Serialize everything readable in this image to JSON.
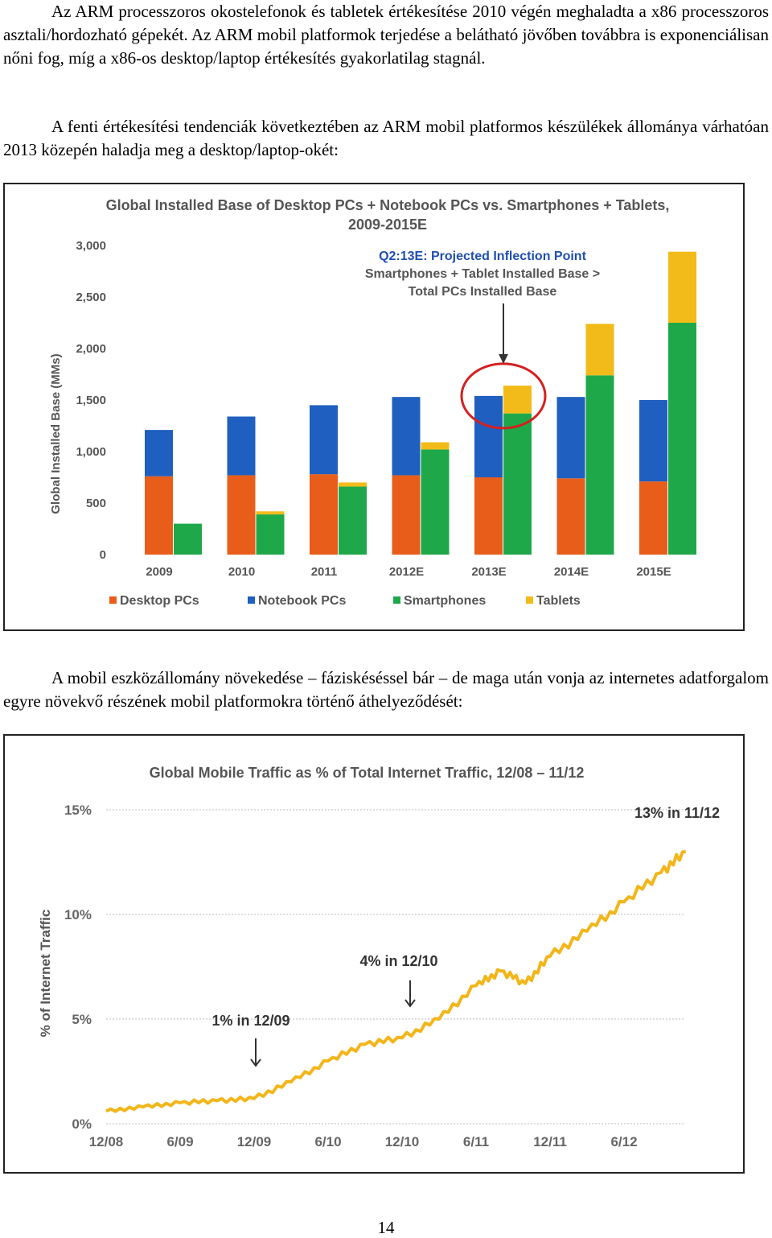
{
  "paragraphs": {
    "p1": "Az ARM processzoros okostelefonok és tabletek értékesítése 2010 végén meghaladta a x86 processzoros asztali/hordozható gépekét. Az ARM mobil platformok terjedése a belátható jövőben továbbra is exponenciálisan nőni fog, míg a x86-os desktop/laptop értékesítés gyakorlatilag stagnál.",
    "p2": "A fenti értékesítési tendenciák következtében az ARM mobil platformos készülékek állománya várhatóan 2013 közepén haladja meg a desktop/laptop-okét:",
    "p3": "A mobil eszközállomány növekedése – fáziskéséssel bár – de maga után vonja az internetes adatforgalom egyre növekvő részének mobil platformokra történő áthelyeződését:"
  },
  "page_number": "14",
  "chart_data": [
    {
      "type": "bar",
      "title": "Global Installed Base of Desktop PCs + Notebook PCs vs. Smartphones + Tablets, 2009-2015E",
      "title_lines": [
        "Global Installed Base of Desktop PCs + Notebook PCs vs. Smartphones + Tablets,",
        "2009-2015E"
      ],
      "ylabel": "Global Installed Base (MMs)",
      "ylim": [
        0,
        3000
      ],
      "yticks": [
        "0",
        "500",
        "1,000",
        "1,500",
        "2,000",
        "2,500",
        "3,000"
      ],
      "categories": [
        "2009",
        "2010",
        "2011",
        "2012E",
        "2013E",
        "2014E",
        "2015E"
      ],
      "stacks": [
        {
          "name": "Desktop PCs",
          "stack": "pc",
          "color": "#e85d1a",
          "values": [
            760,
            770,
            780,
            770,
            750,
            740,
            710
          ]
        },
        {
          "name": "Notebook PCs",
          "stack": "pc",
          "color": "#1f5fbf",
          "values": [
            450,
            570,
            670,
            760,
            790,
            790,
            790
          ]
        },
        {
          "name": "Smartphones",
          "stack": "mobile",
          "color": "#1fa84a",
          "values": [
            300,
            390,
            660,
            1020,
            1370,
            1740,
            2250
          ]
        },
        {
          "name": "Tablets",
          "stack": "mobile",
          "color": "#f2bb1a",
          "values": [
            0,
            30,
            40,
            70,
            270,
            500,
            690
          ]
        }
      ],
      "annotation_lines": [
        "Q2:13E: Projected Inflection Point",
        "Smartphones + Tablet Installed Base >",
        "Total PCs Installed Base"
      ],
      "annotation_color": "#1f4fb0",
      "highlight_color": "#d42020",
      "grid": false,
      "legend_position": "bottom"
    },
    {
      "type": "line",
      "title": "Global Mobile Traffic as % of Total Internet Traffic, 12/08 – 11/12",
      "ylabel": "% of Internet Traffic",
      "ylim": [
        0,
        15
      ],
      "yticks": [
        "0%",
        "5%",
        "10%",
        "15%"
      ],
      "xticks": [
        "12/08",
        "6/09",
        "12/09",
        "6/10",
        "12/10",
        "6/11",
        "12/11",
        "6/12"
      ],
      "series": [
        {
          "color": "#f2b61a",
          "x": [
            "12/08",
            "3/09",
            "6/09",
            "9/09",
            "12/09",
            "3/10",
            "6/10",
            "9/10",
            "12/10",
            "3/11",
            "6/11",
            "8/11",
            "10/11",
            "12/11",
            "3/12",
            "6/12",
            "9/12",
            "11/12"
          ],
          "y": [
            0.6,
            0.8,
            1.0,
            1.1,
            1.2,
            2.0,
            3.0,
            3.8,
            4.1,
            5.0,
            6.6,
            7.3,
            6.7,
            8.0,
            9.2,
            10.6,
            12.0,
            13.0
          ]
        }
      ],
      "annotations": [
        "1% in 12/09",
        "4% in 12/10",
        "13% in 11/12"
      ],
      "grid": true
    }
  ]
}
